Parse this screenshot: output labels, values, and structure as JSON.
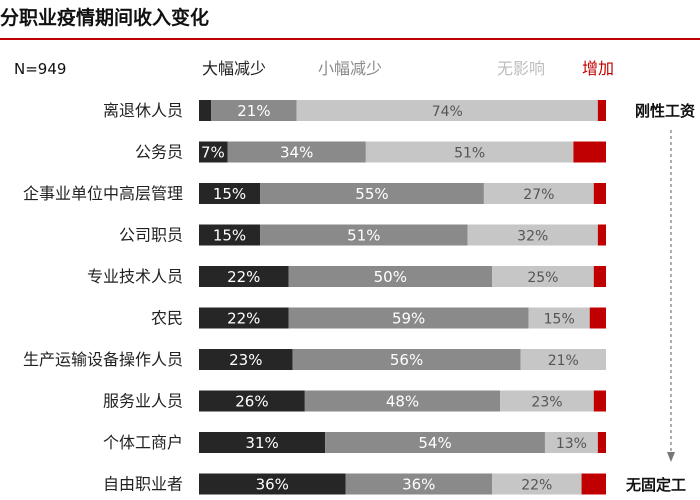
{
  "chart_data": {
    "type": "bar",
    "orientation": "horizontal",
    "stacked": true,
    "normalized_percent": true,
    "title": "分职业疫情期间收入变化",
    "sample_size": "N=949",
    "categories": [
      "离退休人员",
      "公务员",
      "企事业单位中高层管理",
      "公司职员",
      "专业技术人员",
      "农民",
      "生产运输设备操作人员",
      "服务业人员",
      "个体工商户",
      "自由职业者"
    ],
    "series": [
      {
        "name": "大幅减少",
        "color": "#262626",
        "values": [
          3,
          7,
          15,
          15,
          22,
          22,
          23,
          26,
          31,
          36
        ]
      },
      {
        "name": "小幅减少",
        "color": "#8a8a8a",
        "values": [
          21,
          34,
          55,
          51,
          50,
          59,
          56,
          48,
          54,
          36
        ]
      },
      {
        "name": "无影响",
        "color": "#c6c6c6",
        "values": [
          74,
          51,
          27,
          32,
          25,
          15,
          21,
          23,
          13,
          22
        ]
      },
      {
        "name": "增加",
        "color": "#c00000",
        "values": [
          2,
          8,
          3,
          2,
          3,
          4,
          0,
          3,
          2,
          6
        ]
      }
    ],
    "data_labels": [
      [
        "",
        "21%",
        "74%",
        ""
      ],
      [
        "7%",
        "34%",
        "51%",
        ""
      ],
      [
        "15%",
        "55%",
        "27%",
        ""
      ],
      [
        "15%",
        "51%",
        "32%",
        ""
      ],
      [
        "22%",
        "50%",
        "25%",
        ""
      ],
      [
        "22%",
        "59%",
        "15%",
        ""
      ],
      [
        "23%",
        "56%",
        "21%",
        ""
      ],
      [
        "26%",
        "48%",
        "23%",
        ""
      ],
      [
        "31%",
        "54%",
        "13%",
        ""
      ],
      [
        "36%",
        "36%",
        "22%",
        ""
      ]
    ],
    "annotations": {
      "top": "刚性工资",
      "bottom": "无固定工",
      "arrow": "dashed-down"
    }
  },
  "colors": {
    "accent_red": "#c00000",
    "title_rule": "#c00000",
    "legend_text": [
      "#222222",
      "#8a8a8a",
      "#bdbdbd",
      "#c00000"
    ],
    "label_on_dark": "#ffffff",
    "label_on_light": "#555555"
  }
}
